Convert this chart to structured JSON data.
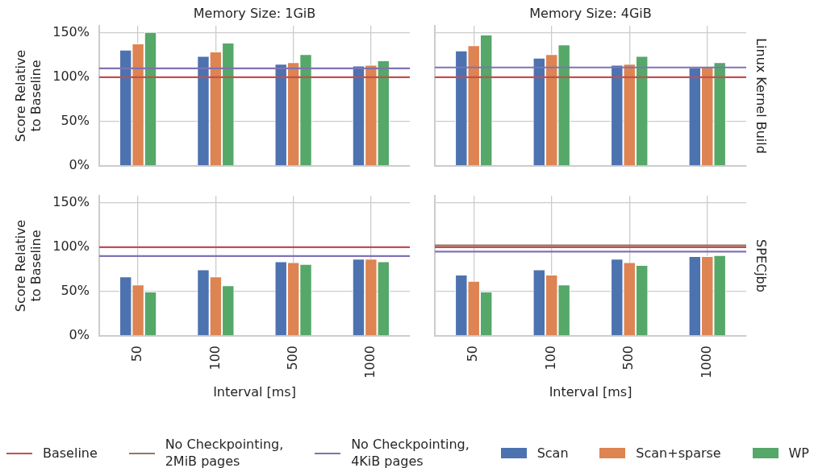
{
  "chart_data": [
    {
      "type": "bar",
      "title": "Memory Size: 1GiB",
      "ylabel": "Score Relative\nto Baseline",
      "categories": [
        "50",
        "100",
        "500",
        "1000"
      ],
      "series": [
        {
          "color": "#4c72b0",
          "values": [
            131,
            124,
            115,
            113
          ]
        },
        {
          "color": "#dd8452",
          "values": [
            138,
            129,
            117,
            114
          ]
        },
        {
          "color": "#55a868",
          "values": [
            151,
            139,
            126,
            119
          ]
        }
      ],
      "ylim": [
        0,
        158
      ],
      "yticks": [
        {
          "value": 0,
          "label": "0%"
        },
        {
          "value": 50,
          "label": "50%"
        },
        {
          "value": 100,
          "label": "100%"
        },
        {
          "value": 150,
          "label": "150%"
        }
      ],
      "grid": true,
      "tick_labels": "y",
      "ref_lines": [
        {
          "axis": "y",
          "value": 100,
          "color": "#c44e52"
        },
        {
          "axis": "y",
          "value": 110,
          "color": "#8172b3"
        }
      ]
    },
    {
      "type": "bar",
      "title": "Memory Size: 4GiB",
      "annotations": [
        "Linux Kernel Build"
      ],
      "categories": [
        "50",
        "100",
        "500",
        "1000"
      ],
      "series": [
        {
          "color": "#4c72b0",
          "values": [
            130,
            122,
            114,
            111
          ]
        },
        {
          "color": "#dd8452",
          "values": [
            136,
            126,
            115,
            112
          ]
        },
        {
          "color": "#55a868",
          "values": [
            148,
            137,
            124,
            117
          ]
        }
      ],
      "ylim": [
        0,
        158
      ],
      "yticks": [
        {
          "value": 0,
          "label": null
        },
        {
          "value": 50,
          "label": null
        },
        {
          "value": 100,
          "label": null
        },
        {
          "value": 150,
          "label": null
        }
      ],
      "grid": true,
      "tick_labels": false,
      "ref_lines": [
        {
          "axis": "y",
          "value": 100,
          "color": "#c44e52"
        },
        {
          "axis": "y",
          "value": 111,
          "color": "#8172b3"
        }
      ]
    },
    {
      "type": "bar",
      "xlabel": "Interval [ms]",
      "ylabel": "Score Relative\nto Baseline",
      "categories": [
        "50",
        "100",
        "500",
        "1000"
      ],
      "series": [
        {
          "color": "#4c72b0",
          "values": [
            67,
            75,
            84,
            87
          ]
        },
        {
          "color": "#dd8452",
          "values": [
            58,
            67,
            83,
            87
          ]
        },
        {
          "color": "#55a868",
          "values": [
            50,
            57,
            81,
            84
          ]
        }
      ],
      "ylim": [
        0,
        158
      ],
      "yticks": [
        {
          "value": 0,
          "label": "0%"
        },
        {
          "value": 50,
          "label": "50%"
        },
        {
          "value": 100,
          "label": "100%"
        },
        {
          "value": 150,
          "label": "150%"
        }
      ],
      "grid": true,
      "ref_lines": [
        {
          "axis": "y",
          "value": 100,
          "color": "#c44e52"
        },
        {
          "axis": "y",
          "value": 90,
          "color": "#8172b3"
        }
      ]
    },
    {
      "type": "bar",
      "xlabel": "Interval [ms]",
      "annotations": [
        "SPECjbb"
      ],
      "categories": [
        "50",
        "100",
        "500",
        "1000"
      ],
      "series": [
        {
          "name": "Scan",
          "color": "#4c72b0",
          "values": [
            69,
            75,
            87,
            90
          ]
        },
        {
          "name": "Scan+sparse",
          "color": "#dd8452",
          "values": [
            62,
            69,
            83,
            90
          ]
        },
        {
          "name": "WP",
          "color": "#55a868",
          "values": [
            50,
            58,
            80,
            91
          ]
        }
      ],
      "ylim": [
        0,
        158
      ],
      "yticks": [
        {
          "value": 0,
          "label": null
        },
        {
          "value": 50,
          "label": null
        },
        {
          "value": 100,
          "label": null
        },
        {
          "value": 150,
          "label": null
        }
      ],
      "grid": true,
      "tick_labels": "x",
      "legend": "bottom",
      "ref_lines": [
        {
          "axis": "y",
          "value": 100,
          "label": "Baseline",
          "color": "#c44e52"
        },
        {
          "axis": "y",
          "value": 102,
          "label": "No Checkpointing,\n2MiB pages",
          "color": "#937860"
        },
        {
          "axis": "y",
          "value": 95,
          "label": "No Checkpointing,\n4KiB pages",
          "color": "#8172b3"
        }
      ]
    }
  ]
}
